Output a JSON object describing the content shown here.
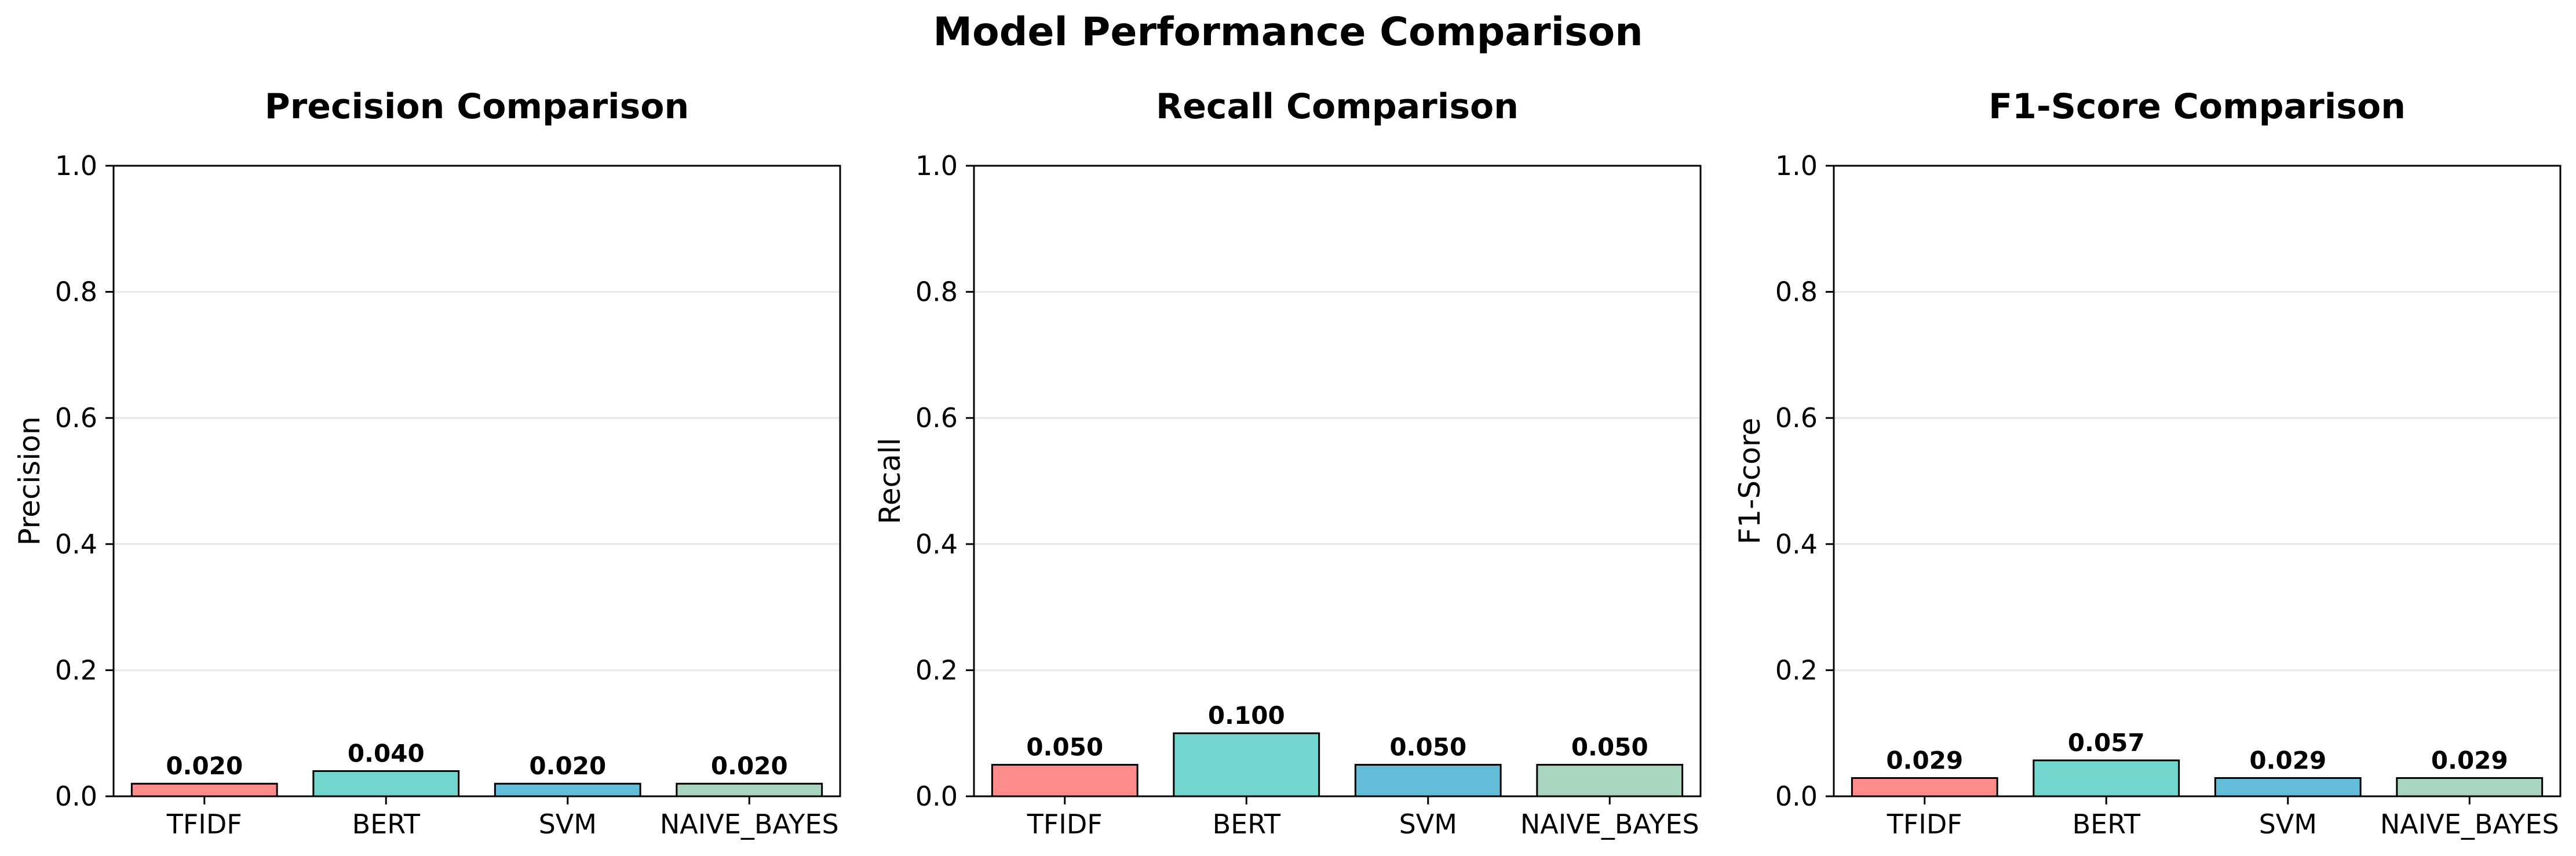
{
  "figure_title": "Model Performance Comparison",
  "colors": {
    "TFIDF": "#FF8A8A",
    "BERT": "#72D6CE",
    "SVM": "#64BDD8",
    "NAIVE_BAYES": "#A8D5BE"
  },
  "chart_data": [
    {
      "type": "bar",
      "title": "Precision Comparison",
      "xlabel": "",
      "ylabel": "Precision",
      "categories": [
        "TFIDF",
        "BERT",
        "SVM",
        "NAIVE_BAYES"
      ],
      "values": [
        0.02,
        0.04,
        0.02,
        0.02
      ],
      "value_labels": [
        "0.020",
        "0.040",
        "0.020",
        "0.020"
      ],
      "ylim": [
        0,
        1.0
      ],
      "yticks": [
        0.0,
        0.2,
        0.4,
        0.6,
        0.8,
        1.0
      ],
      "ytick_labels": [
        "0.0",
        "0.2",
        "0.4",
        "0.6",
        "0.8",
        "1.0"
      ],
      "grid": "y"
    },
    {
      "type": "bar",
      "title": "Recall Comparison",
      "xlabel": "",
      "ylabel": "Recall",
      "categories": [
        "TFIDF",
        "BERT",
        "SVM",
        "NAIVE_BAYES"
      ],
      "values": [
        0.05,
        0.1,
        0.05,
        0.05
      ],
      "value_labels": [
        "0.050",
        "0.100",
        "0.050",
        "0.050"
      ],
      "ylim": [
        0,
        1.0
      ],
      "yticks": [
        0.0,
        0.2,
        0.4,
        0.6,
        0.8,
        1.0
      ],
      "ytick_labels": [
        "0.0",
        "0.2",
        "0.4",
        "0.6",
        "0.8",
        "1.0"
      ],
      "grid": "y"
    },
    {
      "type": "bar",
      "title": "F1-Score Comparison",
      "xlabel": "",
      "ylabel": "F1-Score",
      "categories": [
        "TFIDF",
        "BERT",
        "SVM",
        "NAIVE_BAYES"
      ],
      "values": [
        0.029,
        0.057,
        0.029,
        0.029
      ],
      "value_labels": [
        "0.029",
        "0.057",
        "0.029",
        "0.029"
      ],
      "ylim": [
        0,
        1.0
      ],
      "yticks": [
        0.0,
        0.2,
        0.4,
        0.6,
        0.8,
        1.0
      ],
      "ytick_labels": [
        "0.0",
        "0.2",
        "0.4",
        "0.6",
        "0.8",
        "1.0"
      ],
      "grid": "y"
    }
  ]
}
